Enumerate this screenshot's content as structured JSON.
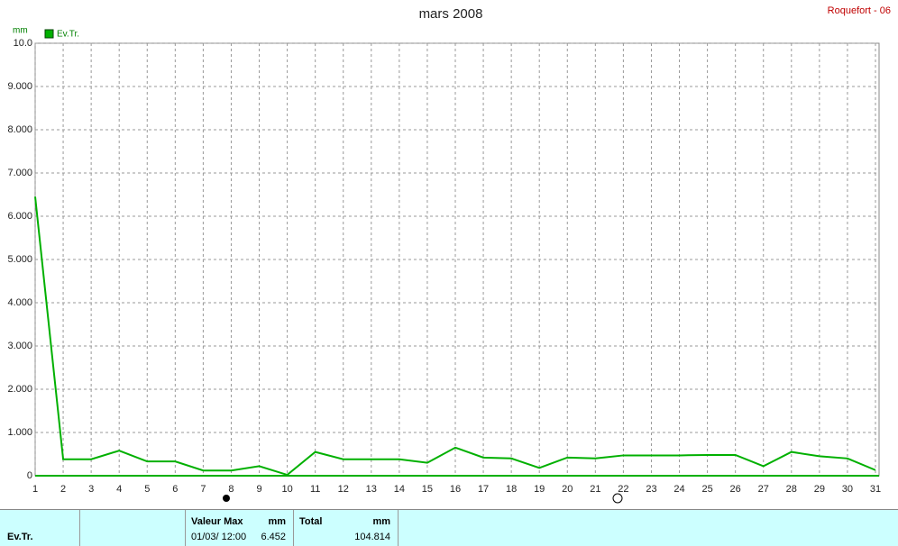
{
  "chart_data": {
    "type": "line",
    "title": "mars 2008",
    "station": "Roquefort - 06",
    "y_label": "mm",
    "x": [
      1,
      2,
      3,
      4,
      5,
      6,
      7,
      8,
      9,
      10,
      11,
      12,
      13,
      14,
      15,
      16,
      17,
      18,
      19,
      20,
      21,
      22,
      23,
      24,
      25,
      26,
      27,
      28,
      29,
      30,
      31
    ],
    "xlim": [
      1,
      31
    ],
    "series": [
      {
        "name": "Ev.Tr.",
        "color": "#00b000",
        "values": [
          6.452,
          0.38,
          0.38,
          0.58,
          0.33,
          0.33,
          0.12,
          0.12,
          0.22,
          0.02,
          0.55,
          0.38,
          0.38,
          0.38,
          0.3,
          0.65,
          0.42,
          0.4,
          0.18,
          0.42,
          0.4,
          0.47,
          0.47,
          0.47,
          0.48,
          0.48,
          0.22,
          0.55,
          0.45,
          0.4,
          0.13
        ]
      }
    ],
    "ylim": [
      0,
      10
    ],
    "yticks": [
      0,
      {
        "value": 1,
        "label": "1.000"
      },
      {
        "value": 2,
        "label": "2.000"
      },
      {
        "value": 3,
        "label": "3.000"
      },
      {
        "value": 4,
        "label": "4.000"
      },
      {
        "value": 5,
        "label": "5.000"
      },
      {
        "value": 6,
        "label": "6.000"
      },
      {
        "value": 7,
        "label": "7.000"
      },
      {
        "value": 8,
        "label": "8.000"
      },
      {
        "value": 9,
        "label": "9.000"
      },
      {
        "value": 10,
        "label": "10.0"
      }
    ],
    "grid": true
  },
  "summary": {
    "series_label": "Ev.Tr.",
    "max": {
      "label": "Valeur Max",
      "unit": "mm",
      "date": "01/03/ 12:00",
      "value": 6.452
    },
    "total": {
      "label": "Total",
      "unit": "mm",
      "value": 104.814
    }
  }
}
